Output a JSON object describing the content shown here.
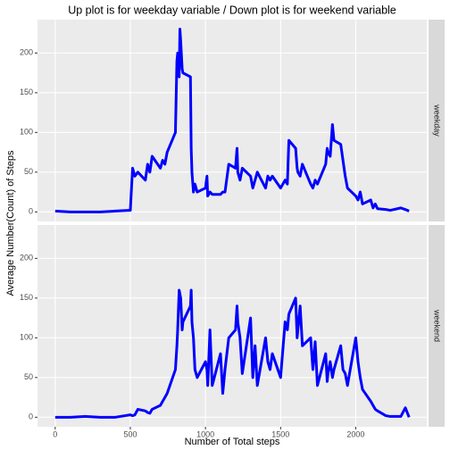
{
  "chart_data": {
    "type": "line",
    "facets": true,
    "title": "Up plot is for weekday variable / Down plot is for weekend variable",
    "x_label": "Number of Total steps",
    "y_label": "Average Number(Count) of Steps",
    "xlim": [
      -117.75,
      2472.75
    ],
    "xticks": [
      0,
      500,
      1000,
      1500,
      2000
    ],
    "ylim": [
      -12,
      242
    ],
    "yticks": [
      0,
      50,
      100,
      150,
      200
    ],
    "grid": true,
    "x": [
      0,
      100,
      200,
      300,
      400,
      500,
      515,
      530,
      550,
      600,
      615,
      630,
      645,
      700,
      715,
      730,
      745,
      800,
      810,
      815,
      825,
      830,
      835,
      845,
      850,
      900,
      905,
      910,
      920,
      930,
      945,
      1000,
      1010,
      1015,
      1030,
      1045,
      1100,
      1115,
      1130,
      1155,
      1200,
      1210,
      1215,
      1230,
      1245,
      1300,
      1315,
      1330,
      1345,
      1400,
      1415,
      1430,
      1445,
      1500,
      1530,
      1545,
      1555,
      1600,
      1610,
      1615,
      1630,
      1645,
      1700,
      1715,
      1730,
      1745,
      1800,
      1810,
      1815,
      1830,
      1845,
      1855,
      1900,
      1915,
      1930,
      1945,
      2000,
      2015,
      2030,
      2045,
      2100,
      2115,
      2130,
      2145,
      2200,
      2230,
      2300,
      2330,
      2355
    ],
    "series": [
      {
        "name": "weekday",
        "color": "#0000ff",
        "values": [
          1,
          0,
          0,
          0,
          1,
          2,
          55,
          45,
          50,
          40,
          60,
          50,
          70,
          55,
          65,
          60,
          75,
          100,
          190,
          200,
          170,
          230,
          215,
          180,
          175,
          170,
          80,
          50,
          25,
          35,
          25,
          30,
          45,
          20,
          25,
          22,
          22,
          25,
          25,
          60,
          55,
          80,
          50,
          40,
          55,
          45,
          30,
          40,
          50,
          30,
          45,
          40,
          45,
          30,
          40,
          35,
          90,
          80,
          55,
          50,
          45,
          60,
          35,
          30,
          40,
          35,
          60,
          80,
          75,
          70,
          110,
          90,
          85,
          65,
          45,
          30,
          20,
          15,
          25,
          10,
          15,
          5,
          10,
          4,
          3,
          2,
          5,
          3,
          1
        ]
      },
      {
        "name": "weekend",
        "color": "#0000ff",
        "values": [
          0,
          0,
          1,
          0,
          0,
          3,
          2,
          3,
          10,
          8,
          6,
          5,
          10,
          15,
          20,
          25,
          30,
          60,
          90,
          110,
          160,
          155,
          150,
          110,
          120,
          140,
          160,
          120,
          100,
          60,
          50,
          70,
          60,
          40,
          110,
          40,
          80,
          30,
          60,
          100,
          110,
          140,
          120,
          100,
          55,
          125,
          50,
          90,
          40,
          100,
          70,
          60,
          80,
          50,
          120,
          110,
          130,
          150,
          100,
          110,
          140,
          90,
          100,
          60,
          95,
          40,
          80,
          45,
          55,
          70,
          50,
          60,
          90,
          60,
          55,
          40,
          100,
          70,
          50,
          35,
          20,
          15,
          10,
          8,
          2,
          1,
          1,
          12,
          0
        ]
      }
    ]
  }
}
